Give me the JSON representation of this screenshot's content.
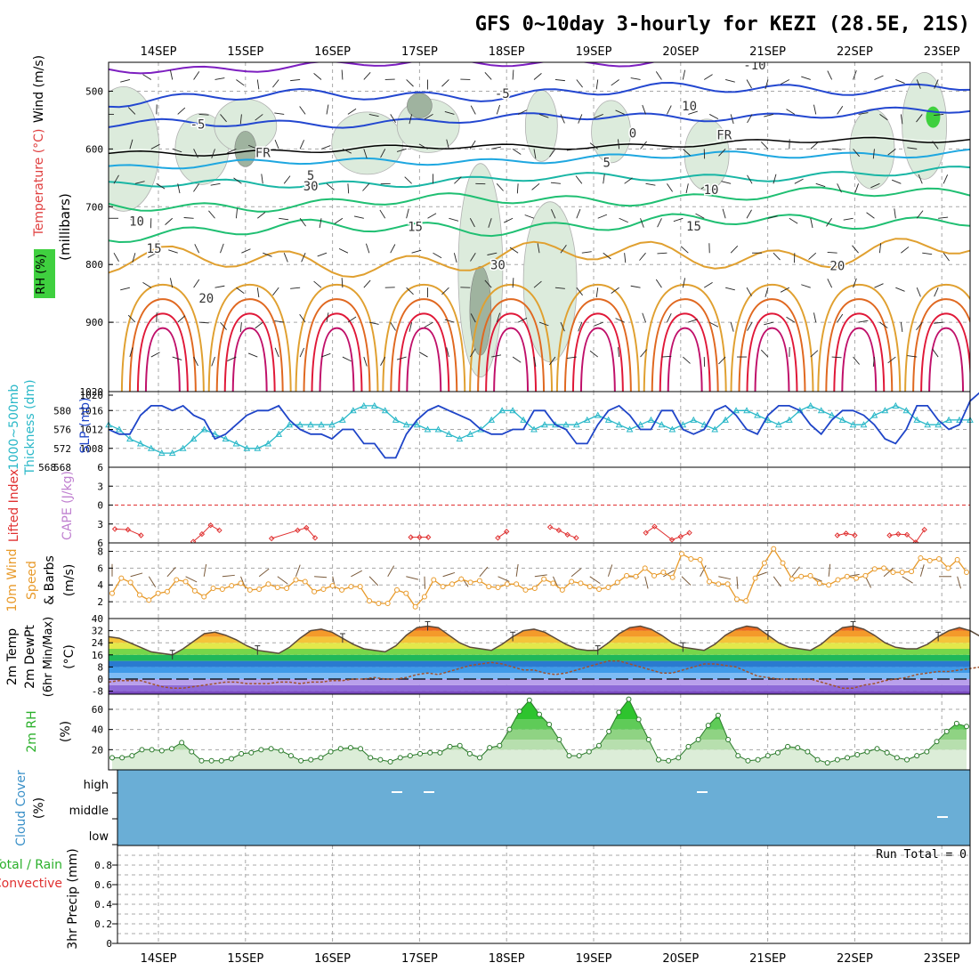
{
  "title": "GFS 0~10day 3-hourly for KEZI (28.5E, 21S)",
  "date_labels": [
    "14SEP",
    "15SEP",
    "16SEP",
    "17SEP",
    "18SEP",
    "19SEP",
    "20SEP",
    "21SEP",
    "22SEP",
    "23SEP"
  ],
  "colors": {
    "frame": "#000000",
    "grid": "#a8a8a8",
    "temp_cold": "#7d1fc0",
    "temp_blue": "#2347d0",
    "temp_cyan": "#1ea7e0",
    "temp_teal": "#19b6a5",
    "temp_green": "#1fbf72",
    "temp_warm": "#e0a030",
    "temp_hot": "#e06820",
    "temp_red": "#e01838",
    "rh_fill": "#dcebdc",
    "slp": "#1f45c8",
    "thickness": "#2ab8c8",
    "lifted": "#e03030",
    "wind_speed": "#e89a2a",
    "barb": "#7a5a3a",
    "temp2m": "#5a4a3a",
    "cloud": "#6aaed6",
    "rh_green": "#3fd03f",
    "rh_line": "#2a7a2a"
  },
  "chart_data": [
    {
      "type": "contour",
      "panel": "upper-air",
      "y_axis_label": "(millibars)",
      "left_labels": [
        "Wind (m/s)",
        "Temperature (°C)",
        "RH (%)"
      ],
      "ylim": [
        1020,
        450
      ],
      "y_ticks": [
        500,
        600,
        700,
        800,
        900,
        1020
      ],
      "contour_labels": [
        {
          "text": "-10",
          "day": 7.35,
          "p": 462
        },
        {
          "text": "-5",
          "day": 4.45,
          "p": 512
        },
        {
          "text": "-5",
          "day": 0.95,
          "p": 565
        },
        {
          "text": "FR",
          "day": 1.7,
          "p": 614
        },
        {
          "text": "FR",
          "day": 7.0,
          "p": 583
        },
        {
          "text": "5",
          "day": 2.25,
          "p": 653
        },
        {
          "text": "5",
          "day": 5.65,
          "p": 631
        },
        {
          "text": "10",
          "day": 0.25,
          "p": 733
        },
        {
          "text": "10",
          "day": 6.85,
          "p": 678
        },
        {
          "text": "15",
          "day": 0.45,
          "p": 780
        },
        {
          "text": "15",
          "day": 3.45,
          "p": 742
        },
        {
          "text": "15",
          "day": 6.65,
          "p": 741
        },
        {
          "text": "20",
          "day": 1.05,
          "p": 866
        },
        {
          "text": "20",
          "day": 8.3,
          "p": 810
        },
        {
          "text": "30",
          "day": 4.4,
          "p": 808
        },
        {
          "text": "30",
          "day": 2.25,
          "p": 672
        },
        {
          "text": "10",
          "day": 6.6,
          "p": 533
        },
        {
          "text": "0",
          "day": 5.95,
          "p": 580
        }
      ]
    },
    {
      "type": "line",
      "panel": "slp-thickness",
      "left_labels": [
        "1000~500mb",
        "Thickness (dm)",
        "SLP (mb)"
      ],
      "slp_ticks": [
        1008,
        1012,
        1016,
        1020
      ],
      "thickness_ticks": [
        568,
        572,
        576,
        580
      ],
      "series": [
        {
          "name": "SLP (mb)",
          "ylim": [
            1004,
            1020
          ],
          "values": [
            1012,
            1011,
            1011,
            1015,
            1017,
            1017,
            1016,
            1017,
            1015,
            1014,
            1010,
            1011,
            1013,
            1015,
            1016,
            1016,
            1017,
            1014,
            1012,
            1011,
            1011,
            1010,
            1012,
            1012,
            1009,
            1009,
            1006,
            1006,
            1011,
            1014,
            1016,
            1017,
            1016,
            1015,
            1014,
            1012,
            1011,
            1011,
            1012,
            1012,
            1016,
            1016,
            1013,
            1012,
            1009,
            1009,
            1013,
            1016,
            1017,
            1015,
            1012,
            1012,
            1016,
            1016,
            1012,
            1011,
            1012,
            1016,
            1017,
            1015,
            1012,
            1011,
            1015,
            1017,
            1017,
            1016,
            1013,
            1011,
            1014,
            1016,
            1016,
            1015,
            1013,
            1010,
            1009,
            1012,
            1017,
            1017,
            1014,
            1012,
            1013,
            1018,
            1020
          ]
        },
        {
          "name": "1000~500mb Thickness (dm)",
          "ylim": [
            568,
            584
          ],
          "values": [
            577,
            576,
            574,
            573,
            572,
            571,
            571,
            572,
            574,
            576,
            575,
            574,
            573,
            572,
            572,
            573,
            575,
            577,
            577,
            577,
            577,
            577,
            578,
            580,
            581,
            581,
            580,
            578,
            577,
            577,
            576,
            576,
            575,
            574,
            575,
            576,
            578,
            580,
            580,
            578,
            576,
            577,
            577,
            577,
            577,
            578,
            579,
            578,
            577,
            576,
            577,
            578,
            577,
            576,
            577,
            578,
            577,
            576,
            578,
            580,
            580,
            579,
            578,
            577,
            578,
            580,
            581,
            580,
            579,
            578,
            577,
            577,
            579,
            580,
            581,
            580,
            578,
            577,
            577,
            578,
            578,
            578
          ]
        }
      ]
    },
    {
      "type": "line",
      "panel": "stability",
      "left_labels": [
        "Lifted Index",
        "CAPE (J/kg)"
      ],
      "ylim": [
        -6,
        6
      ],
      "y_ticks": [
        -6,
        -3,
        0,
        3,
        6
      ],
      "y_tick_labels": [
        "6",
        "3",
        "0",
        "3",
        "6"
      ],
      "series": [
        {
          "name": "Lifted Index",
          "x_days": [
            0.0,
            0.15,
            0.3,
            0.4,
            0.5,
            0.6,
            0.9,
            1.0,
            1.1,
            1.2,
            1.5,
            1.6,
            1.7,
            1.8,
            2.1,
            2.2,
            2.3,
            2.4,
            2.5,
            3.4,
            3.5,
            3.6,
            3.7,
            3.8,
            4.3,
            4.4,
            4.5,
            4.6,
            4.7,
            4.8,
            4.9,
            5.0,
            5.1,
            5.2,
            5.3,
            5.5,
            5.6,
            5.7,
            5.8,
            5.9,
            6.1,
            6.2,
            6.4,
            6.5,
            6.6,
            6.7,
            6.8,
            6.9,
            7.0,
            8.2,
            8.3,
            8.4,
            8.5,
            8.6,
            8.7,
            8.8,
            8.9,
            9.0,
            9.1,
            9.2,
            9.3
          ],
          "values": [
            3.8,
            3.9,
            4.8,
            6,
            6,
            6,
            5.8,
            4.6,
            3.2,
            4.0,
            6,
            6,
            6,
            5.3,
            4.0,
            3.6,
            5.2,
            6,
            6,
            5.1,
            5.1,
            5.1,
            6,
            6,
            6,
            5.2,
            4.2,
            6,
            6,
            6,
            6,
            3.5,
            4.0,
            4.7,
            5.2,
            6,
            6,
            6,
            6,
            6,
            4.4,
            3.4,
            5.5,
            5.0,
            4.4,
            6,
            6,
            6,
            6,
            6,
            4.8,
            4.5,
            4.8,
            6,
            6,
            6,
            4.8,
            4.6,
            4.7,
            5.9,
            3.9
          ]
        }
      ]
    },
    {
      "type": "line",
      "panel": "10m-wind",
      "left_labels": [
        "10m Wind",
        "Speed",
        "& Barbs"
      ],
      "y_axis_label": "(m/s)",
      "ylim": [
        0,
        9
      ],
      "y_ticks": [
        2,
        4,
        6,
        8
      ],
      "series": [
        {
          "name": "10m Wind Speed",
          "values": [
            3.0,
            4.8,
            4.3,
            2.8,
            2.2,
            3.0,
            3.2,
            4.6,
            4.4,
            3.3,
            2.6,
            3.6,
            3.5,
            3.9,
            4.2,
            3.4,
            3.5,
            4.1,
            3.7,
            3.6,
            4.6,
            4.4,
            3.2,
            3.5,
            3.9,
            3.4,
            3.8,
            3.8,
            2.1,
            1.8,
            1.8,
            3.4,
            3.0,
            1.4,
            2.6,
            4.6,
            3.8,
            4.1,
            4.7,
            4.3,
            4.5,
            3.8,
            3.7,
            4.1,
            4.1,
            3.4,
            3.6,
            4.7,
            4.2,
            3.4,
            4.4,
            4.2,
            3.8,
            3.5,
            3.7,
            4.3,
            5.1,
            5.0,
            6.0,
            5.1,
            5.5,
            4.9,
            7.7,
            7.1,
            7.0,
            4.4,
            4.1,
            4.1,
            2.3,
            2.1,
            4.8,
            6.6,
            8.3,
            6.6,
            4.7,
            5.0,
            5.1,
            4.2,
            4.0,
            4.6,
            5.0,
            4.8,
            5.1,
            5.9,
            6.0,
            5.5,
            5.5,
            5.6,
            7.2,
            6.9,
            7.1,
            6.0,
            7.0,
            5.5
          ]
        }
      ]
    },
    {
      "type": "area",
      "panel": "2m-temperature",
      "left_labels": [
        "2m Temp",
        "2m DewPt",
        "(6hr Min/Max)"
      ],
      "y_axis_label": "(°C)",
      "ylim": [
        -10,
        40
      ],
      "y_ticks": [
        -8,
        0,
        8,
        16,
        24,
        32,
        40
      ],
      "series": [
        {
          "name": "2m Temp",
          "values": [
            28,
            27,
            24,
            21,
            18,
            17,
            16,
            20,
            25,
            30,
            31,
            29,
            26,
            22,
            19,
            18,
            17,
            21,
            27,
            32,
            33,
            31,
            27,
            23,
            20,
            19,
            18,
            22,
            29,
            34,
            35,
            34,
            29,
            24,
            21,
            20,
            19,
            23,
            28,
            32,
            33,
            31,
            27,
            23,
            20,
            19,
            19,
            24,
            30,
            34,
            35,
            33,
            29,
            24,
            21,
            20,
            19,
            23,
            29,
            33,
            35,
            34,
            29,
            24,
            21,
            20,
            19,
            23,
            29,
            34,
            35,
            33,
            29,
            24,
            21,
            20,
            20,
            23,
            28,
            32,
            34,
            32,
            28,
            24,
            21,
            20,
            19,
            22
          ]
        },
        {
          "name": "2m DewPt",
          "values": [
            -2,
            -1,
            -1,
            -1,
            -3,
            -5,
            -6,
            -6,
            -5,
            -4,
            -3,
            -2,
            -2,
            -3,
            -3,
            -3,
            -2,
            -2,
            -3,
            -2,
            -2,
            -1,
            -1,
            0,
            0,
            1,
            0,
            0,
            1,
            3,
            4,
            3,
            5,
            7,
            9,
            10,
            11,
            10,
            8,
            6,
            6,
            4,
            3,
            4,
            6,
            8,
            10,
            12,
            12,
            10,
            8,
            6,
            4,
            4,
            6,
            8,
            10,
            10,
            9,
            8,
            5,
            2,
            1,
            0,
            0,
            0,
            0,
            -2,
            -4,
            -6,
            -6,
            -4,
            -3,
            -1,
            0,
            1,
            3,
            4,
            5,
            5,
            6,
            7,
            8,
            9
          ]
        }
      ]
    },
    {
      "type": "area",
      "panel": "2m-rh",
      "left_labels": [
        "2m RH"
      ],
      "y_axis_label": "(%)",
      "ylim": [
        0,
        75
      ],
      "y_ticks": [
        20,
        40,
        60
      ],
      "series": [
        {
          "name": "2m RH",
          "values": [
            12,
            12,
            14,
            20,
            20,
            19,
            21,
            27,
            18,
            9,
            9,
            9,
            11,
            16,
            17,
            20,
            21,
            19,
            14,
            9,
            10,
            12,
            18,
            21,
            22,
            21,
            12,
            10,
            8,
            12,
            14,
            16,
            17,
            17,
            23,
            24,
            16,
            12,
            22,
            24,
            40,
            58,
            69,
            55,
            45,
            30,
            14,
            14,
            18,
            24,
            38,
            57,
            70,
            50,
            30,
            10,
            9,
            12,
            23,
            30,
            44,
            54,
            30,
            14,
            9,
            10,
            14,
            17,
            23,
            22,
            18,
            10,
            7,
            10,
            12,
            15,
            18,
            21,
            17,
            12,
            10,
            14,
            18,
            28,
            38,
            46,
            43
          ]
        }
      ]
    },
    {
      "type": "heatmap",
      "panel": "cloud-cover",
      "left_labels": [
        "Cloud Cover",
        "(%)"
      ],
      "y_tick_labels": [
        "high",
        "middle",
        "low"
      ],
      "fill": "0%",
      "notes": "Panel uniformly shaded blue with a few short white marks"
    },
    {
      "type": "bar",
      "panel": "precipitation",
      "left_labels": [
        "Total / Rain",
        "Convective"
      ],
      "y_axis_label": "3hr Precip (mm)",
      "ylim": [
        0,
        1
      ],
      "y_ticks": [
        0,
        0.2,
        0.4,
        0.6,
        0.8
      ],
      "run_total_label": "Run Total = 0",
      "values": []
    }
  ]
}
